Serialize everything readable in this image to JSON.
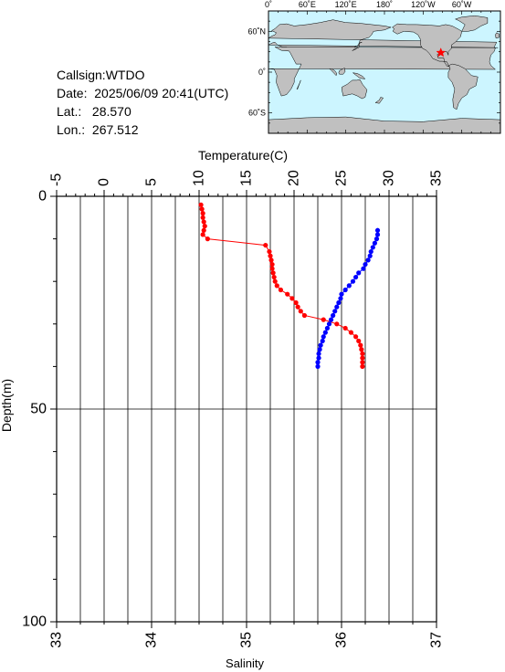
{
  "info": {
    "callsign": "Callsign:WTDO",
    "date": "Date:  2025/06/09 20:41(UTC)",
    "lat": "Lat.:   28.570",
    "lon": "Lon.:  267.512"
  },
  "map": {
    "lon_labels": [
      "0˚",
      "60˚E",
      "120˚E",
      "180˚",
      "120˚W",
      "60˚W"
    ],
    "lat_labels": [
      "60˚N",
      "0˚",
      "60˚S"
    ],
    "ocean_color": "#ccf5ff",
    "land_color": "#c0c0c0",
    "marker_color": "#ff0000",
    "station_lon": 267.512,
    "station_lat": 28.57
  },
  "chart_data": {
    "type": "scatter",
    "top_axis_label": "Temperature(C)",
    "bottom_axis_label": "Salinity",
    "ylabel": "Depth(m)",
    "temperature_ticks": [
      "-5",
      "0",
      "5",
      "10",
      "15",
      "20",
      "25",
      "30",
      "35"
    ],
    "salinity_ticks": [
      "33",
      "34",
      "35",
      "36",
      "37"
    ],
    "depth_ticks": [
      "0",
      "50",
      "100"
    ],
    "temperature_range": [
      -5,
      35
    ],
    "salinity_range": [
      33,
      37
    ],
    "depth_range": [
      0,
      100
    ],
    "grid": true,
    "series": [
      {
        "color": "#ff0000",
        "points": [
          {
            "t": 10.2,
            "d": 2
          },
          {
            "t": 10.3,
            "d": 3
          },
          {
            "t": 10.4,
            "d": 4
          },
          {
            "t": 10.4,
            "d": 5
          },
          {
            "t": 10.5,
            "d": 6
          },
          {
            "t": 10.6,
            "d": 7
          },
          {
            "t": 10.5,
            "d": 8
          },
          {
            "t": 10.4,
            "d": 9
          },
          {
            "t": 10.9,
            "d": 10
          },
          {
            "t": 17.0,
            "d": 11.5
          },
          {
            "t": 17.4,
            "d": 13
          },
          {
            "t": 17.5,
            "d": 14
          },
          {
            "t": 17.6,
            "d": 15
          },
          {
            "t": 17.7,
            "d": 16
          },
          {
            "t": 17.7,
            "d": 17
          },
          {
            "t": 17.8,
            "d": 18
          },
          {
            "t": 17.9,
            "d": 19
          },
          {
            "t": 18.0,
            "d": 20
          },
          {
            "t": 18.2,
            "d": 21
          },
          {
            "t": 18.6,
            "d": 22
          },
          {
            "t": 19.3,
            "d": 23
          },
          {
            "t": 19.8,
            "d": 24
          },
          {
            "t": 20.2,
            "d": 25
          },
          {
            "t": 20.4,
            "d": 26
          },
          {
            "t": 20.7,
            "d": 27
          },
          {
            "t": 21.1,
            "d": 28
          },
          {
            "t": 23.1,
            "d": 29
          },
          {
            "t": 24.5,
            "d": 30
          },
          {
            "t": 25.4,
            "d": 31
          },
          {
            "t": 26.0,
            "d": 32
          },
          {
            "t": 26.5,
            "d": 33
          },
          {
            "t": 26.8,
            "d": 34
          },
          {
            "t": 27.0,
            "d": 35
          },
          {
            "t": 27.1,
            "d": 36
          },
          {
            "t": 27.2,
            "d": 37
          },
          {
            "t": 27.2,
            "d": 38
          },
          {
            "t": 27.2,
            "d": 39
          },
          {
            "t": 27.2,
            "d": 40
          }
        ]
      },
      {
        "color": "#0000ff",
        "points": [
          {
            "s": 36.38,
            "d": 8
          },
          {
            "s": 36.38,
            "d": 9
          },
          {
            "s": 36.37,
            "d": 10
          },
          {
            "s": 36.35,
            "d": 11
          },
          {
            "s": 36.33,
            "d": 12
          },
          {
            "s": 36.31,
            "d": 13
          },
          {
            "s": 36.3,
            "d": 14
          },
          {
            "s": 36.28,
            "d": 15
          },
          {
            "s": 36.25,
            "d": 16
          },
          {
            "s": 36.23,
            "d": 17
          },
          {
            "s": 36.18,
            "d": 18
          },
          {
            "s": 36.15,
            "d": 19
          },
          {
            "s": 36.12,
            "d": 20
          },
          {
            "s": 36.08,
            "d": 21
          },
          {
            "s": 36.04,
            "d": 22
          },
          {
            "s": 36.0,
            "d": 23
          },
          {
            "s": 35.99,
            "d": 24
          },
          {
            "s": 35.97,
            "d": 25
          },
          {
            "s": 35.95,
            "d": 26
          },
          {
            "s": 35.93,
            "d": 27
          },
          {
            "s": 35.91,
            "d": 28
          },
          {
            "s": 35.89,
            "d": 29
          },
          {
            "s": 35.87,
            "d": 30
          },
          {
            "s": 35.85,
            "d": 31
          },
          {
            "s": 35.83,
            "d": 32
          },
          {
            "s": 35.81,
            "d": 33
          },
          {
            "s": 35.8,
            "d": 34
          },
          {
            "s": 35.78,
            "d": 35
          },
          {
            "s": 35.77,
            "d": 36
          },
          {
            "s": 35.76,
            "d": 37
          },
          {
            "s": 35.76,
            "d": 38
          },
          {
            "s": 35.75,
            "d": 39
          },
          {
            "s": 35.75,
            "d": 40
          }
        ]
      }
    ]
  }
}
